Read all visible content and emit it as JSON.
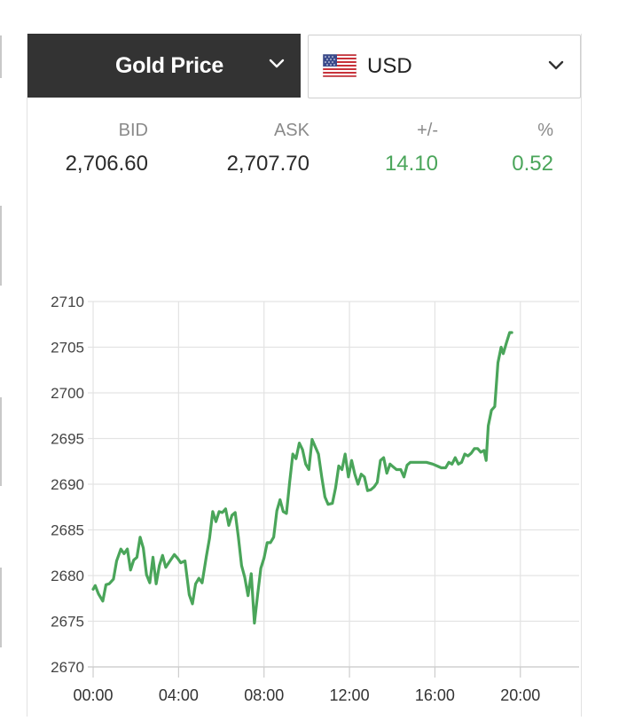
{
  "widget": {
    "metal_label": "Gold Price",
    "currency_label": "USD",
    "currency_flag_icon": "us-flag-icon",
    "dropdown_icon": "chevron-down-icon"
  },
  "quote": {
    "bid_label": "BID",
    "bid_value": "2,706.60",
    "ask_label": "ASK",
    "ask_value": "2,707.70",
    "change_label": "+/-",
    "change_value": "14.10",
    "percent_label": "%",
    "percent_value": "0.52",
    "up_color": "#4aa55a"
  },
  "chart_data": {
    "type": "line",
    "title": "",
    "xlabel": "",
    "ylabel": "",
    "ylim": [
      2670,
      2710
    ],
    "y_ticks": [
      2670,
      2675,
      2680,
      2685,
      2690,
      2695,
      2700,
      2705,
      2710
    ],
    "x_range_hours": [
      -0.25,
      22.75
    ],
    "x_ticks": [
      {
        "hour": 0,
        "label": "00:00"
      },
      {
        "hour": 4,
        "label": "04:00"
      },
      {
        "hour": 8,
        "label": "08:00"
      },
      {
        "hour": 12,
        "label": "12:00"
      },
      {
        "hour": 16,
        "label": "16:00"
      },
      {
        "hour": 20,
        "label": "20:00"
      }
    ],
    "grid": true,
    "line_color": "#4aa55a",
    "series": [
      {
        "name": "",
        "points": [
          [
            0.0,
            2678.5
          ],
          [
            0.1,
            2678.9
          ],
          [
            0.25,
            2678.0
          ],
          [
            0.45,
            2677.2
          ],
          [
            0.6,
            2679.0
          ],
          [
            0.75,
            2679.1
          ],
          [
            0.95,
            2679.6
          ],
          [
            1.1,
            2681.6
          ],
          [
            1.3,
            2682.9
          ],
          [
            1.45,
            2682.4
          ],
          [
            1.6,
            2682.9
          ],
          [
            1.75,
            2680.6
          ],
          [
            1.9,
            2681.7
          ],
          [
            2.05,
            2682.0
          ],
          [
            2.2,
            2684.2
          ],
          [
            2.35,
            2683.0
          ],
          [
            2.5,
            2680.1
          ],
          [
            2.65,
            2679.2
          ],
          [
            2.8,
            2682.0
          ],
          [
            2.95,
            2679.1
          ],
          [
            3.1,
            2681.1
          ],
          [
            3.25,
            2682.2
          ],
          [
            3.4,
            2680.9
          ],
          [
            3.6,
            2681.6
          ],
          [
            3.8,
            2682.3
          ],
          [
            3.95,
            2681.9
          ],
          [
            4.1,
            2681.4
          ],
          [
            4.3,
            2681.6
          ],
          [
            4.5,
            2677.9
          ],
          [
            4.65,
            2676.9
          ],
          [
            4.8,
            2679.1
          ],
          [
            4.95,
            2679.7
          ],
          [
            5.1,
            2679.2
          ],
          [
            5.3,
            2682.1
          ],
          [
            5.45,
            2684.1
          ],
          [
            5.6,
            2687.0
          ],
          [
            5.75,
            2685.9
          ],
          [
            5.9,
            2687.0
          ],
          [
            6.05,
            2686.9
          ],
          [
            6.2,
            2687.3
          ],
          [
            6.35,
            2685.5
          ],
          [
            6.5,
            2686.6
          ],
          [
            6.65,
            2686.9
          ],
          [
            6.8,
            2684.2
          ],
          [
            6.95,
            2681.1
          ],
          [
            7.1,
            2679.8
          ],
          [
            7.25,
            2677.8
          ],
          [
            7.4,
            2680.2
          ],
          [
            7.55,
            2674.8
          ],
          [
            7.7,
            2677.9
          ],
          [
            7.85,
            2680.8
          ],
          [
            8.0,
            2681.9
          ],
          [
            8.15,
            2683.6
          ],
          [
            8.3,
            2683.6
          ],
          [
            8.45,
            2684.2
          ],
          [
            8.6,
            2687.1
          ],
          [
            8.75,
            2688.3
          ],
          [
            8.9,
            2687.0
          ],
          [
            9.05,
            2686.8
          ],
          [
            9.2,
            2690.2
          ],
          [
            9.35,
            2693.3
          ],
          [
            9.5,
            2692.8
          ],
          [
            9.65,
            2694.5
          ],
          [
            9.8,
            2693.8
          ],
          [
            9.95,
            2692.2
          ],
          [
            10.1,
            2691.6
          ],
          [
            10.25,
            2694.9
          ],
          [
            10.4,
            2694.1
          ],
          [
            10.55,
            2693.3
          ],
          [
            10.7,
            2690.8
          ],
          [
            10.85,
            2688.6
          ],
          [
            11.0,
            2687.8
          ],
          [
            11.2,
            2687.9
          ],
          [
            11.35,
            2689.6
          ],
          [
            11.5,
            2692.0
          ],
          [
            11.65,
            2691.6
          ],
          [
            11.8,
            2693.3
          ],
          [
            11.95,
            2690.8
          ],
          [
            12.1,
            2692.6
          ],
          [
            12.25,
            2691.1
          ],
          [
            12.4,
            2690.0
          ],
          [
            12.55,
            2691.1
          ],
          [
            12.7,
            2690.8
          ],
          [
            12.85,
            2689.3
          ],
          [
            13.0,
            2689.4
          ],
          [
            13.15,
            2689.7
          ],
          [
            13.3,
            2690.2
          ],
          [
            13.45,
            2692.6
          ],
          [
            13.6,
            2692.9
          ],
          [
            13.75,
            2691.2
          ],
          [
            13.9,
            2692.2
          ],
          [
            14.05,
            2691.9
          ],
          [
            14.2,
            2691.6
          ],
          [
            14.4,
            2691.6
          ],
          [
            14.55,
            2690.8
          ],
          [
            14.7,
            2692.1
          ],
          [
            14.85,
            2692.4
          ],
          [
            15.0,
            2692.4
          ],
          [
            15.3,
            2692.4
          ],
          [
            15.6,
            2692.4
          ],
          [
            15.9,
            2692.2
          ],
          [
            16.1,
            2692.0
          ],
          [
            16.3,
            2691.8
          ],
          [
            16.5,
            2691.8
          ],
          [
            16.65,
            2692.4
          ],
          [
            16.8,
            2692.2
          ],
          [
            16.95,
            2692.9
          ],
          [
            17.1,
            2692.2
          ],
          [
            17.25,
            2692.4
          ],
          [
            17.4,
            2693.3
          ],
          [
            17.55,
            2693.1
          ],
          [
            17.7,
            2693.4
          ],
          [
            17.85,
            2693.9
          ],
          [
            18.0,
            2693.9
          ],
          [
            18.15,
            2693.5
          ],
          [
            18.3,
            2693.7
          ],
          [
            18.4,
            2692.6
          ],
          [
            18.5,
            2696.4
          ],
          [
            18.65,
            2698.1
          ],
          [
            18.8,
            2698.5
          ],
          [
            18.95,
            2703.3
          ],
          [
            19.1,
            2705.0
          ],
          [
            19.2,
            2704.3
          ],
          [
            19.35,
            2705.5
          ],
          [
            19.5,
            2706.6
          ],
          [
            19.6,
            2706.6
          ]
        ]
      }
    ]
  }
}
